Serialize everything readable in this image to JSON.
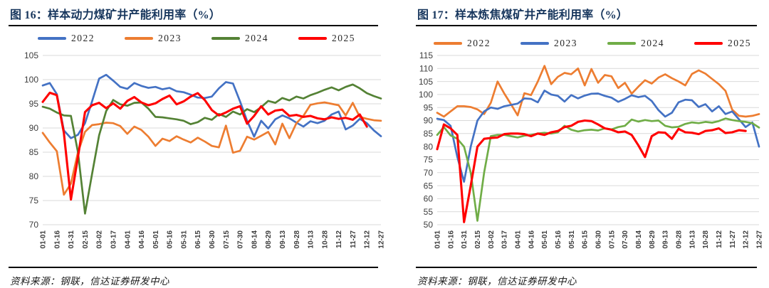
{
  "source_note": "资料来源：钢联，信达证券研发中心",
  "chart_data": [
    {
      "type": "line",
      "title": "图 16：样本动力煤矿井产能利用率（%）",
      "source": "资料来源：钢联，信达证券研发中心",
      "ylim": [
        70,
        105
      ],
      "ytick_step": 5,
      "grid": "horizontal",
      "legend_position": "top",
      "x_tick_labels": [
        "01-01",
        "01-16",
        "01-31",
        "02-15",
        "03-02",
        "03-17",
        "04-01",
        "04-16",
        "05-01",
        "05-16",
        "05-31",
        "06-15",
        "06-30",
        "07-15",
        "07-30",
        "08-14",
        "08-29",
        "09-13",
        "09-28",
        "10-13",
        "10-28",
        "11-12",
        "11-27",
        "12-12",
        "12-27"
      ],
      "series": [
        {
          "name": "2022",
          "color": "#4472C4",
          "values": [
            98.8,
            99.3,
            97.0,
            89.5,
            87.9,
            88.6,
            91.0,
            95.5,
            100.2,
            101.0,
            99.8,
            98.5,
            98.1,
            99.3,
            98.7,
            98.3,
            98.5,
            98.0,
            98.3,
            97.6,
            97.4,
            96.9,
            96.3,
            96.2,
            96.5,
            98.2,
            99.5,
            99.2,
            95.5,
            91.5,
            88.2,
            91.5,
            89.9,
            91.8,
            92.6,
            92.0,
            91.1,
            90.3,
            91.4,
            91.0,
            91.5,
            92.8,
            93.4,
            89.7,
            90.5,
            91.9,
            91.0,
            89.5,
            88.3
          ]
        },
        {
          "name": "2023",
          "color": "#ED7D31",
          "values": [
            89.0,
            87.0,
            85.2,
            76.2,
            78.5,
            85.0,
            89.2,
            90.6,
            90.8,
            91.1,
            91.0,
            90.4,
            88.8,
            90.3,
            89.6,
            88.2,
            86.3,
            87.8,
            87.3,
            88.3,
            87.6,
            87.0,
            88.0,
            87.2,
            86.3,
            86.0,
            90.5,
            84.9,
            85.3,
            88.2,
            87.6,
            88.4,
            89.2,
            86.6,
            90.9,
            87.9,
            91.0,
            92.5,
            94.8,
            95.1,
            95.3,
            95.0,
            94.7,
            92.6,
            95.2,
            92.3,
            91.9,
            91.6,
            91.5
          ]
        },
        {
          "name": "2024",
          "color": "#548235",
          "values": [
            94.4,
            94.0,
            93.2,
            92.6,
            92.5,
            85.0,
            72.3,
            80.5,
            88.5,
            93.5,
            95.8,
            94.9,
            94.6,
            95.2,
            95.3,
            94.0,
            92.3,
            92.2,
            92.0,
            91.8,
            91.5,
            90.8,
            91.2,
            92.1,
            91.7,
            92.9,
            92.3,
            93.4,
            92.8,
            93.9,
            93.3,
            94.3,
            95.6,
            95.2,
            96.2,
            95.7,
            96.5,
            96.1,
            96.8,
            97.3,
            97.9,
            98.4,
            97.8,
            98.5,
            99.0,
            98.2,
            97.2,
            96.6,
            96.1
          ]
        },
        {
          "name": "2025",
          "color": "#FF0000",
          "values": [
            95.4,
            97.3,
            96.8,
            89.0,
            75.2,
            84.0,
            93.3,
            94.7,
            95.2,
            94.1,
            95.1,
            94.0,
            95.6,
            96.4,
            95.3,
            94.7,
            95.1,
            96.0,
            96.7,
            94.9,
            95.5,
            96.5,
            97.2,
            95.8,
            93.7,
            92.6,
            93.2,
            94.0,
            94.5,
            90.9,
            92.5,
            94.5,
            92.8,
            93.6,
            93.8,
            92.5,
            92.7,
            92.3,
            92.5,
            92.0,
            91.8,
            92.2,
            91.9,
            92.1,
            91.7,
            92.8,
            90.3
          ]
        }
      ]
    },
    {
      "type": "line",
      "title": "图 17：样本炼焦煤矿井产能利用率（%）",
      "source": "资料来源：钢联，信达证券研发中心",
      "ylim": [
        50,
        115
      ],
      "ytick_step": 5,
      "grid": "horizontal",
      "legend_position": "top",
      "x_tick_labels": [
        "01-01",
        "01-16",
        "01-31",
        "02-15",
        "03-02",
        "03-17",
        "04-01",
        "04-16",
        "05-01",
        "05-16",
        "05-31",
        "06-15",
        "06-30",
        "07-15",
        "07-30",
        "08-14",
        "08-29",
        "09-13",
        "09-28",
        "10-13",
        "10-28",
        "11-12",
        "11-27",
        "12-12",
        "12-27"
      ],
      "series": [
        {
          "name": "2022",
          "color": "#ED7D31",
          "values": [
            93.0,
            91.5,
            93.5,
            95.5,
            95.5,
            95.2,
            94.3,
            92.5,
            96.8,
            105.0,
            100.4,
            96.3,
            92.0,
            100.5,
            99.8,
            105.0,
            111.0,
            104.0,
            106.8,
            108.3,
            107.8,
            110.0,
            103.5,
            109.8,
            104.5,
            107.5,
            107.0,
            102.5,
            104.5,
            100.3,
            103.0,
            105.5,
            104.2,
            106.5,
            107.8,
            106.3,
            105.0,
            103.5,
            107.9,
            109.3,
            108.0,
            106.0,
            104.0,
            101.4,
            94.2,
            91.8,
            91.5,
            91.8,
            92.5
          ]
        },
        {
          "name": "2023",
          "color": "#4472C4",
          "values": [
            90.7,
            90.2,
            88.0,
            76.0,
            66.5,
            80.0,
            90.0,
            93.5,
            95.0,
            94.5,
            95.5,
            96.0,
            96.5,
            98.5,
            98.3,
            97.0,
            101.5,
            100.0,
            99.5,
            97.3,
            99.8,
            98.5,
            99.6,
            100.3,
            100.4,
            99.5,
            98.8,
            97.2,
            98.3,
            99.7,
            99.0,
            99.5,
            97.5,
            94.0,
            91.5,
            93.0,
            97.0,
            98.0,
            97.8,
            95.2,
            96.3,
            93.5,
            95.5,
            92.5,
            93.5,
            90.5,
            87.5,
            89.3,
            80.0
          ]
        },
        {
          "name": "2024",
          "color": "#70AD47",
          "values": [
            84.5,
            87.5,
            84.3,
            83.0,
            80.0,
            70.0,
            51.5,
            70.0,
            84.0,
            84.5,
            84.5,
            84.0,
            83.5,
            84.2,
            84.5,
            85.0,
            85.3,
            85.0,
            85.5,
            88.0,
            86.5,
            85.8,
            86.3,
            86.5,
            86.2,
            87.0,
            86.6,
            87.5,
            88.0,
            90.4,
            89.6,
            90.2,
            89.8,
            90.0,
            88.0,
            87.4,
            87.6,
            88.7,
            89.3,
            89.0,
            89.5,
            89.2,
            89.8,
            90.8,
            90.2,
            89.8,
            89.5,
            89.0,
            87.3
          ]
        },
        {
          "name": "2025",
          "color": "#FF0000",
          "values": [
            79.0,
            88.5,
            87.0,
            84.5,
            51.0,
            65.0,
            80.0,
            83.0,
            83.3,
            83.5,
            84.8,
            85.0,
            85.0,
            84.8,
            84.0,
            85.0,
            84.5,
            85.5,
            86.0,
            87.5,
            88.0,
            89.5,
            90.0,
            89.8,
            88.5,
            87.0,
            86.5,
            85.5,
            85.8,
            84.5,
            80.5,
            76.0,
            84.0,
            85.5,
            85.3,
            83.0,
            86.8,
            85.5,
            85.3,
            84.8,
            86.0,
            86.3,
            87.0,
            85.2,
            85.5,
            86.3,
            86.0
          ]
        }
      ]
    }
  ]
}
